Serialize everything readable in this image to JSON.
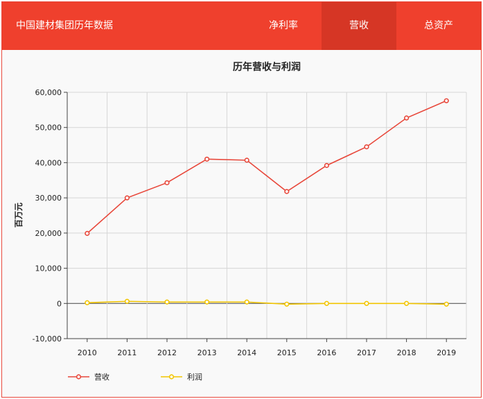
{
  "header": {
    "title": "中国建材集团历年数据",
    "tabs": [
      {
        "label": "净利率",
        "active": false
      },
      {
        "label": "营收",
        "active": true
      },
      {
        "label": "总资产",
        "active": false
      }
    ]
  },
  "colors": {
    "header_bg": "#ef402d",
    "active_tab": "#d63625",
    "revenue": "#e8473a",
    "profit": "#f2c500"
  },
  "chart_data": {
    "type": "line",
    "title": "历年营收与利润",
    "ylabel": "百万元",
    "xlabel": "",
    "categories": [
      "2010",
      "2011",
      "2012",
      "2013",
      "2014",
      "2015",
      "2016",
      "2017",
      "2018",
      "2019"
    ],
    "ylim": [
      -10000,
      60000
    ],
    "yticks": [
      -10000,
      0,
      10000,
      20000,
      30000,
      40000,
      50000,
      60000
    ],
    "ytick_labels": [
      "-10,000",
      "0",
      "10,000",
      "20,000",
      "30,000",
      "40,000",
      "50,000",
      "60,000"
    ],
    "grid": true,
    "legend_position": "bottom-left",
    "series": [
      {
        "name": "营收",
        "color": "#e8473a",
        "values": [
          19900,
          30000,
          34300,
          41000,
          40700,
          31800,
          39200,
          44500,
          52700,
          57600
        ]
      },
      {
        "name": "利润",
        "color": "#f2c500",
        "values": [
          200,
          600,
          400,
          400,
          400,
          -200,
          0,
          0,
          0,
          -200
        ]
      }
    ]
  }
}
